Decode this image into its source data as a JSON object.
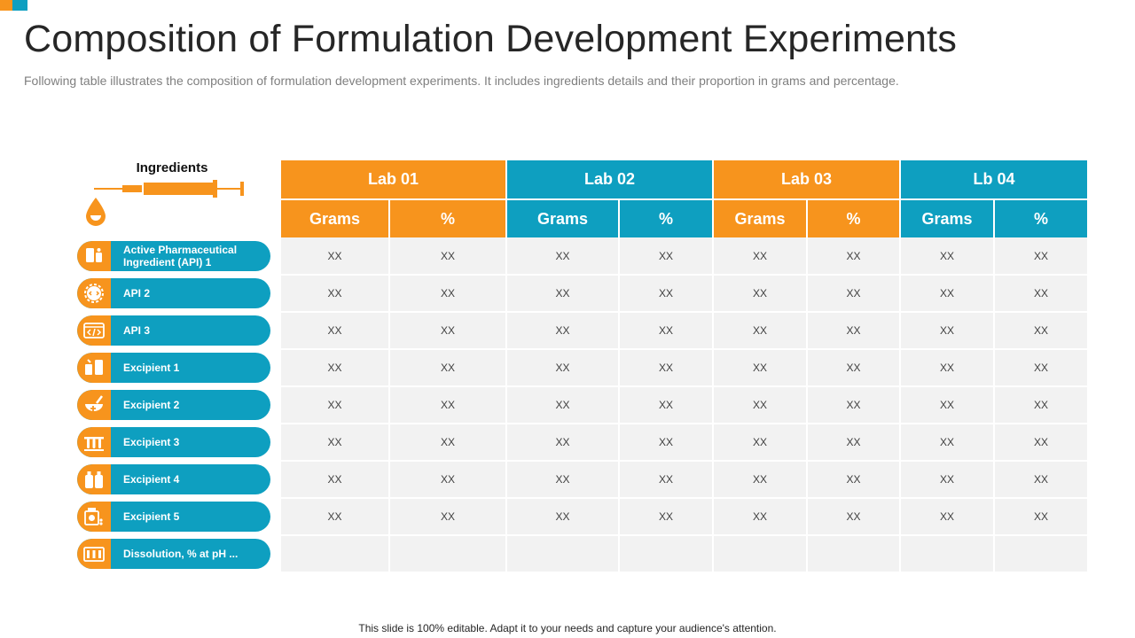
{
  "page": {
    "title": "Composition of Formulation Development Experiments",
    "subtitle": "Following table illustrates the composition of formulation development experiments. It includes ingredients details and their proportion in grams and percentage.",
    "footer": "This slide is 100% editable. Adapt it to your needs and capture your audience's attention."
  },
  "colors": {
    "orange": "#f7941d",
    "blue": "#0e9fc0",
    "cell": "#f2f2f2"
  },
  "ingredients": {
    "heading": "Ingredients",
    "heading_icons": [
      "syringe-icon",
      "drop-icon"
    ],
    "items": [
      {
        "label": "Active Pharmaceutical Ingredient (API) 1",
        "icon": "pill-bottle-icon"
      },
      {
        "label": "API 2",
        "icon": "gear-code-icon"
      },
      {
        "label": "API 3",
        "icon": "code-window-icon"
      },
      {
        "label": "Excipient 1",
        "icon": "pharmacy-icon"
      },
      {
        "label": "Excipient 2",
        "icon": "mortar-pestle-icon"
      },
      {
        "label": "Excipient 3",
        "icon": "test-tubes-icon"
      },
      {
        "label": "Excipient 4",
        "icon": "bottles-icon"
      },
      {
        "label": "Excipient 5",
        "icon": "medicine-box-icon"
      },
      {
        "label": "Dissolution, % at pH ...",
        "icon": "lab-rack-icon"
      }
    ]
  },
  "table": {
    "labs": [
      {
        "name": "Lab 01",
        "color": "orange"
      },
      {
        "name": "Lab 02",
        "color": "blue"
      },
      {
        "name": "Lab 03",
        "color": "orange"
      },
      {
        "name": "Lb 04",
        "color": "blue"
      }
    ],
    "subheaders": [
      "Grams",
      "%",
      "Grams",
      "%",
      "Grams",
      "%",
      "Grams",
      "%"
    ],
    "rows": [
      [
        "XX",
        "XX",
        "XX",
        "XX",
        "XX",
        "XX",
        "XX",
        "XX"
      ],
      [
        "XX",
        "XX",
        "XX",
        "XX",
        "XX",
        "XX",
        "XX",
        "XX"
      ],
      [
        "XX",
        "XX",
        "XX",
        "XX",
        "XX",
        "XX",
        "XX",
        "XX"
      ],
      [
        "XX",
        "XX",
        "XX",
        "XX",
        "XX",
        "XX",
        "XX",
        "XX"
      ],
      [
        "XX",
        "XX",
        "XX",
        "XX",
        "XX",
        "XX",
        "XX",
        "XX"
      ],
      [
        "XX",
        "XX",
        "XX",
        "XX",
        "XX",
        "XX",
        "XX",
        "XX"
      ],
      [
        "XX",
        "XX",
        "XX",
        "XX",
        "XX",
        "XX",
        "XX",
        "XX"
      ],
      [
        "XX",
        "XX",
        "XX",
        "XX",
        "XX",
        "XX",
        "XX",
        "XX"
      ],
      [
        "",
        "",
        "",
        "",
        "",
        "",
        "",
        ""
      ]
    ]
  }
}
